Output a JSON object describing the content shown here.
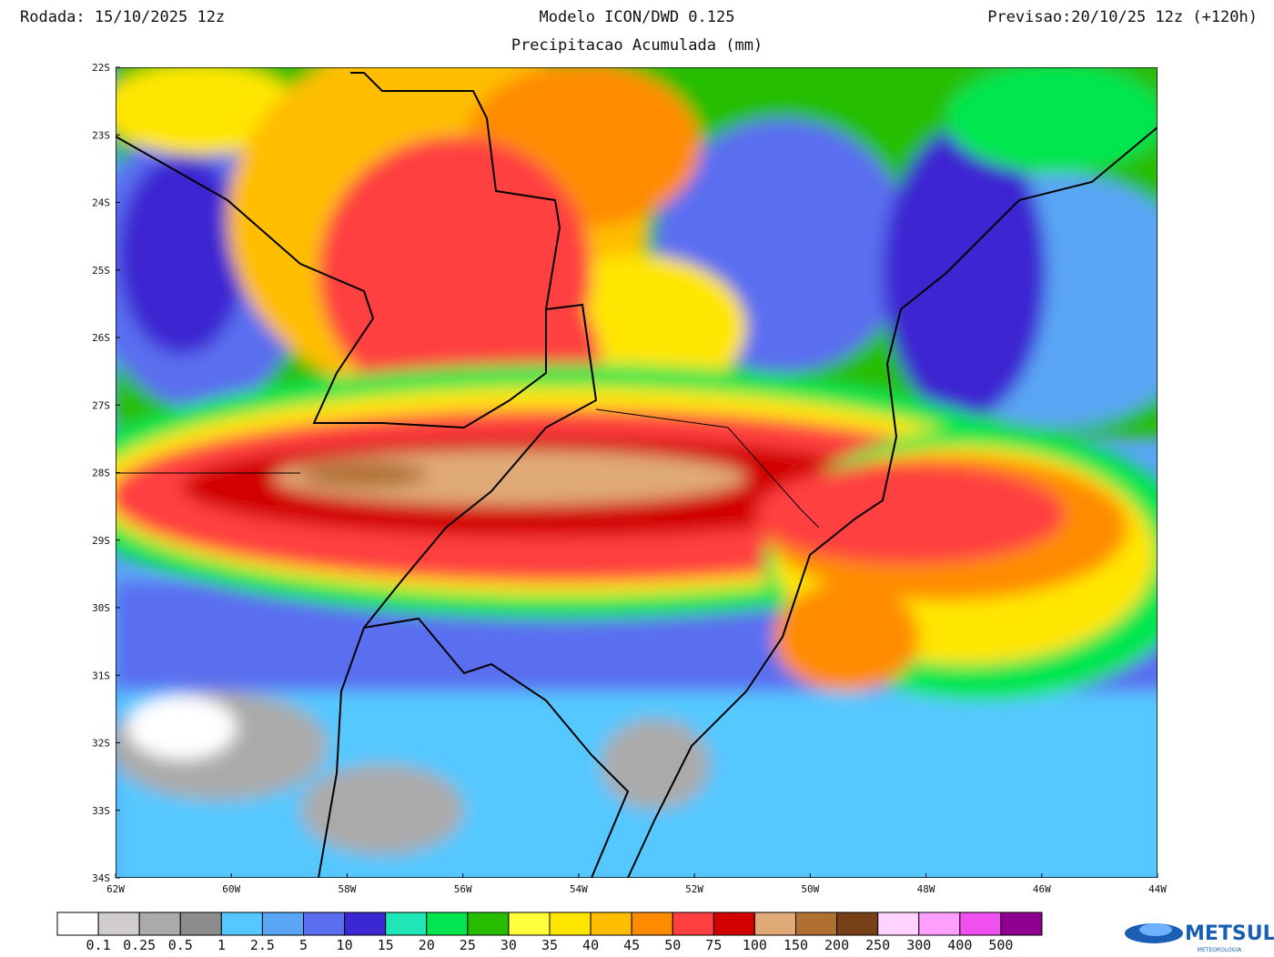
{
  "header": {
    "run": "Rodada: 15/10/2025 12z",
    "model": "Modelo ICON/DWD 0.125",
    "forecast": "Previsao:20/10/25 12z (+120h)",
    "subtitle": "Precipitacao Acumulada (mm)"
  },
  "axes": {
    "lat_labels": [
      "22S",
      "23S",
      "24S",
      "25S",
      "26S",
      "27S",
      "28S",
      "29S",
      "30S",
      "31S",
      "32S",
      "33S",
      "34S"
    ],
    "lon_labels": [
      "62W",
      "60W",
      "58W",
      "56W",
      "54W",
      "52W",
      "50W",
      "48W",
      "46W",
      "44W"
    ]
  },
  "colorbar": {
    "colors": [
      "#ffffff",
      "#d2cdcd",
      "#aaaaaa",
      "#8c8c8c",
      "#55c8ff",
      "#5aa5f5",
      "#5a6ef0",
      "#3c28d2",
      "#1ee6b4",
      "#00e650",
      "#28be00",
      "#ffff3c",
      "#ffe600",
      "#ffbe00",
      "#ff8c00",
      "#ff4040",
      "#d20000",
      "#e0aa78",
      "#b07030",
      "#784018",
      "#ffd2ff",
      "#ffa0ff",
      "#f050f0",
      "#900090"
    ],
    "labels": [
      "0.1",
      "0.25",
      "0.5",
      "1",
      "2.5",
      "5",
      "10",
      "15",
      "20",
      "25",
      "30",
      "35",
      "40",
      "45",
      "50",
      "75",
      "100",
      "150",
      "200",
      "250",
      "300",
      "400",
      "500"
    ]
  },
  "logo": {
    "name": "METSUL",
    "tagline": "METEOROLOGIA"
  }
}
